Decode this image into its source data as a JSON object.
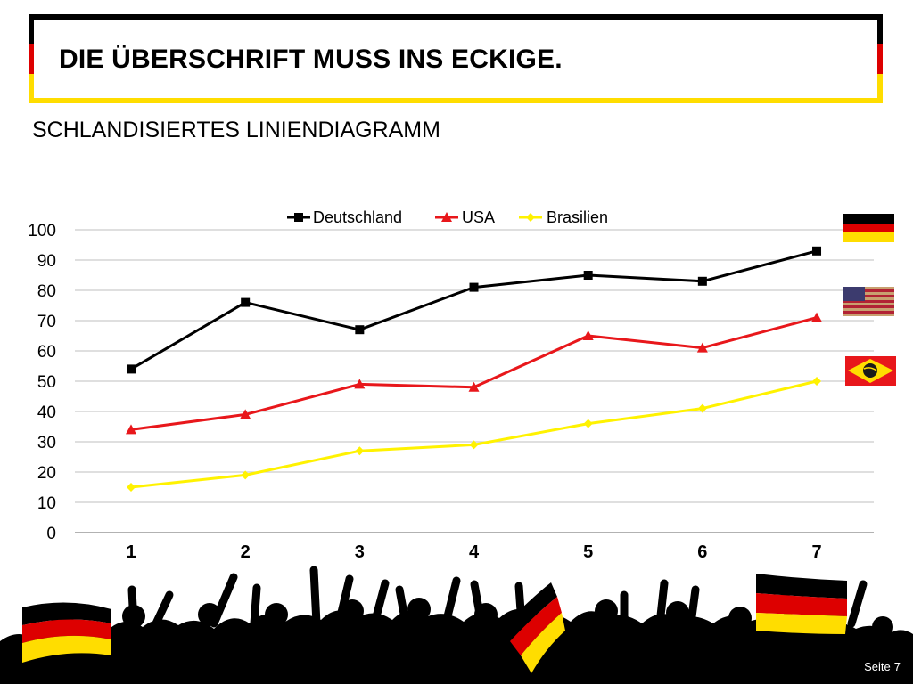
{
  "slide": {
    "title": "DIE ÜBERSCHRIFT MUSS INS ECKIGE.",
    "subtitle": "SCHLANDISIERTES LINIENDIAGRAMM",
    "footer_label": "Seite",
    "page_number": "7"
  },
  "colors": {
    "black": "#000000",
    "red": "#dd0000",
    "gold": "#ffdd00",
    "usa_line": "#e8171b",
    "brasil_line": "#fff200",
    "grid": "#cccccc"
  },
  "flags": [
    {
      "country": "germany",
      "icon": "germany-flag-icon"
    },
    {
      "country": "usa",
      "icon": "usa-flag-icon"
    },
    {
      "country": "brazil",
      "icon": "brazil-flag-icon"
    }
  ],
  "chart_data": {
    "type": "line",
    "x": [
      1,
      2,
      3,
      4,
      5,
      6,
      7
    ],
    "categories": [
      "1",
      "2",
      "3",
      "4",
      "5",
      "6",
      "7"
    ],
    "ylim": [
      0,
      100
    ],
    "yticks": [
      0,
      10,
      20,
      30,
      40,
      50,
      60,
      70,
      80,
      90,
      100
    ],
    "grid": true,
    "legend_position": "top",
    "series": [
      {
        "name": "Deutschland",
        "values": [
          54,
          76,
          67,
          81,
          85,
          83,
          93
        ],
        "color": "#000000",
        "marker": "square"
      },
      {
        "name": "USA",
        "values": [
          34,
          39,
          49,
          48,
          65,
          61,
          71
        ],
        "color": "#e8171b",
        "marker": "triangle"
      },
      {
        "name": "Brasilien",
        "values": [
          15,
          19,
          27,
          29,
          36,
          41,
          50
        ],
        "color": "#fff200",
        "marker": "diamond"
      }
    ]
  }
}
